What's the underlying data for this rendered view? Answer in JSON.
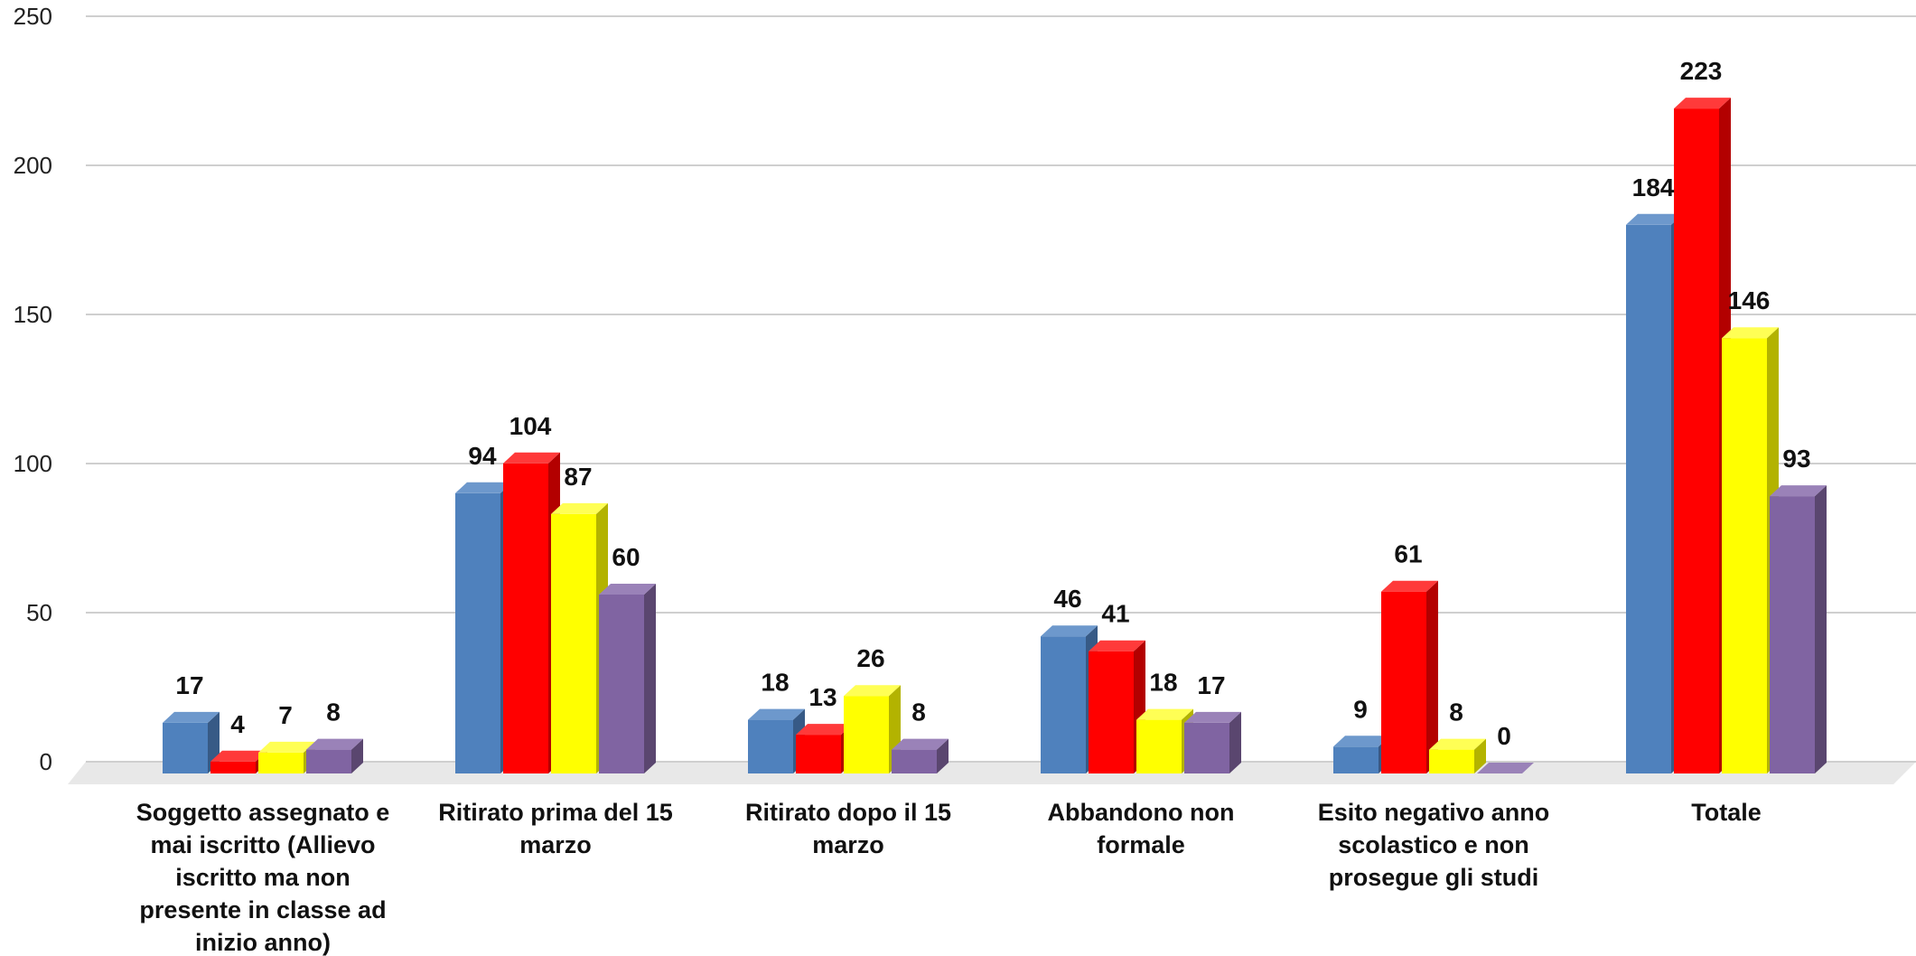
{
  "chart_data": {
    "type": "bar",
    "categories": [
      "Soggetto assegnato e mai iscritto (Allievo iscritto ma non presente in classe ad inizio anno)",
      "Ritirato prima del 15 marzo",
      "Ritirato dopo il 15 marzo",
      "Abbandono non formale",
      "Esito negativo anno scolastico e non prosegue gli studi",
      "Totale"
    ],
    "category_lines": [
      [
        "Soggetto assegnato e",
        "mai iscritto (Allievo",
        "iscritto ma non",
        "presente in classe ad",
        "inizio anno)"
      ],
      [
        "Ritirato prima del 15",
        "marzo"
      ],
      [
        "Ritirato dopo il 15",
        "marzo"
      ],
      [
        "Abbandono non",
        "formale"
      ],
      [
        "Esito negativo anno",
        "scolastico e non",
        "prosegue gli studi"
      ],
      [
        "Totale"
      ]
    ],
    "series": [
      {
        "color": "#4f81bd",
        "side_color": "#375a86",
        "top_color": "#6d98cc",
        "values": [
          17,
          94,
          18,
          46,
          9,
          184
        ]
      },
      {
        "color": "#ff0000",
        "side_color": "#b30000",
        "top_color": "#ff3a3a",
        "values": [
          4,
          104,
          13,
          41,
          61,
          223
        ]
      },
      {
        "color": "#ffff00",
        "side_color": "#b3b300",
        "top_color": "#ffff55",
        "values": [
          7,
          87,
          26,
          18,
          8,
          146
        ]
      },
      {
        "color": "#8064a2",
        "side_color": "#5a466f",
        "top_color": "#9a82b8",
        "values": [
          8,
          60,
          8,
          17,
          0,
          93
        ]
      }
    ],
    "ylim": [
      0,
      250
    ],
    "yticks": [
      0,
      50,
      100,
      150,
      200,
      250
    ],
    "ytick_labels": [
      "0",
      "50",
      "100",
      "150",
      "200",
      "250"
    ],
    "grid": true,
    "legend": "none",
    "style": "3d-clustered-column"
  }
}
